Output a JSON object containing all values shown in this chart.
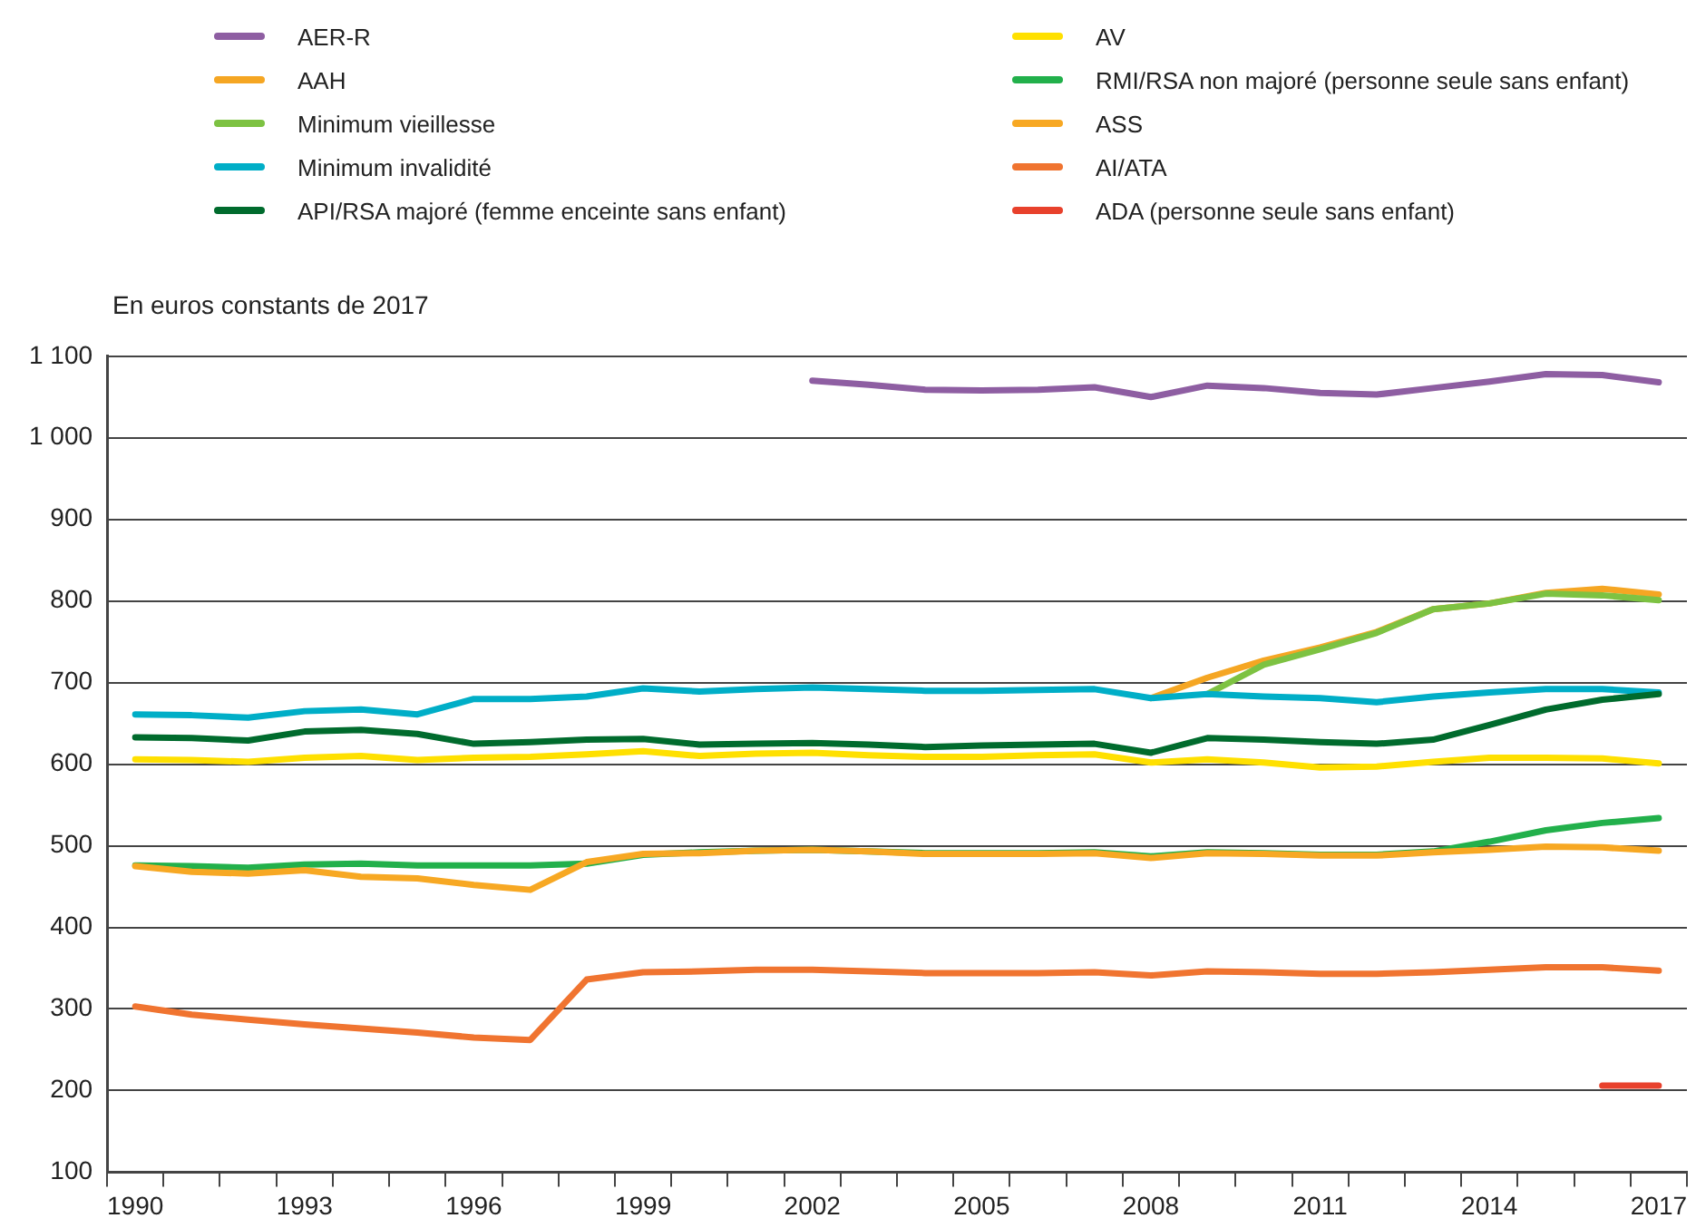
{
  "chart_data": {
    "type": "line",
    "ylabel": "En euros constants de 2017",
    "categories": [
      "1990",
      null,
      null,
      "1993",
      null,
      null,
      "1996",
      null,
      null,
      "1999",
      null,
      null,
      "2002",
      null,
      null,
      "2005",
      null,
      null,
      "2008",
      null,
      null,
      "2011",
      null,
      null,
      "2014",
      null,
      null,
      "2017"
    ],
    "ylim": [
      100,
      1100
    ],
    "yticks": [
      100,
      200,
      300,
      400,
      500,
      600,
      700,
      800,
      900,
      {
        "value": 1000,
        "label": "1 000"
      },
      {
        "value": 1100,
        "label": "1 100"
      }
    ],
    "grid": "y",
    "legend": "top",
    "marker": "none",
    "line_style": "solid",
    "series": [
      {
        "name": "AER-R",
        "color": "#8e5ea2",
        "values": [
          null,
          null,
          null,
          null,
          null,
          null,
          null,
          null,
          null,
          null,
          null,
          null,
          1070,
          1065,
          1059,
          1058,
          1059,
          1062,
          1050,
          1064,
          1061,
          1055,
          1053,
          1061,
          1069,
          1078,
          1077,
          1068
        ]
      },
      {
        "name": "AAH",
        "color": "#f5a623",
        "values": [
          null,
          null,
          null,
          null,
          null,
          null,
          null,
          null,
          null,
          null,
          null,
          null,
          null,
          null,
          null,
          null,
          null,
          null,
          681,
          706,
          727,
          743,
          762,
          790,
          797,
          810,
          815,
          808
        ]
      },
      {
        "name": "Minimum vieillesse",
        "color": "#7dc242",
        "values": [
          null,
          null,
          null,
          null,
          null,
          null,
          null,
          null,
          null,
          null,
          null,
          null,
          null,
          null,
          null,
          null,
          null,
          null,
          null,
          686,
          722,
          741,
          761,
          790,
          797,
          809,
          807,
          801
        ]
      },
      {
        "name": "Minimum invalidité",
        "color": "#00aec7",
        "values": [
          661,
          660,
          657,
          665,
          667,
          661,
          680,
          680,
          683,
          693,
          689,
          692,
          694,
          692,
          690,
          690,
          691,
          692,
          681,
          686,
          683,
          681,
          676,
          683,
          688,
          692,
          692,
          688
        ]
      },
      {
        "name": "API/RSA majoré (femme enceinte sans enfant)",
        "color": "#006b2d",
        "values": [
          633,
          632,
          629,
          640,
          642,
          637,
          625,
          627,
          630,
          631,
          624,
          625,
          626,
          624,
          621,
          623,
          624,
          625,
          614,
          632,
          630,
          627,
          625,
          630,
          648,
          667,
          679,
          686
        ]
      },
      {
        "name": "AV",
        "color": "#ffe000",
        "values": [
          606,
          605,
          603,
          608,
          610,
          605,
          608,
          609,
          612,
          616,
          610,
          613,
          614,
          611,
          609,
          609,
          611,
          612,
          602,
          606,
          602,
          596,
          597,
          603,
          608,
          608,
          607,
          601
        ]
      },
      {
        "name": "RMI/RSA non majoré (personne seule sans enfant)",
        "color": "#22b04b",
        "values": [
          476,
          475,
          473,
          477,
          478,
          476,
          476,
          476,
          478,
          489,
          492,
          494,
          495,
          493,
          491,
          491,
          491,
          492,
          487,
          492,
          491,
          489,
          489,
          493,
          505,
          519,
          528,
          534
        ]
      },
      {
        "name": "ASS",
        "color": "#f7a823",
        "values": [
          475,
          468,
          466,
          470,
          462,
          460,
          452,
          446,
          480,
          490,
          491,
          494,
          495,
          493,
          490,
          490,
          490,
          491,
          485,
          491,
          490,
          488,
          488,
          492,
          495,
          499,
          498,
          494
        ]
      },
      {
        "name": "AI/ATA",
        "color": "#f07430",
        "values": [
          303,
          293,
          287,
          281,
          276,
          271,
          265,
          262,
          336,
          345,
          346,
          348,
          348,
          346,
          344,
          344,
          344,
          345,
          341,
          346,
          345,
          343,
          343,
          345,
          348,
          351,
          351,
          347
        ]
      },
      {
        "name": "ADA (personne seule sans enfant)",
        "color": "#e8412c",
        "values": [
          null,
          null,
          null,
          null,
          null,
          null,
          null,
          null,
          null,
          null,
          null,
          null,
          null,
          null,
          null,
          null,
          null,
          null,
          null,
          null,
          null,
          null,
          null,
          null,
          null,
          null,
          206,
          206
        ]
      }
    ]
  }
}
